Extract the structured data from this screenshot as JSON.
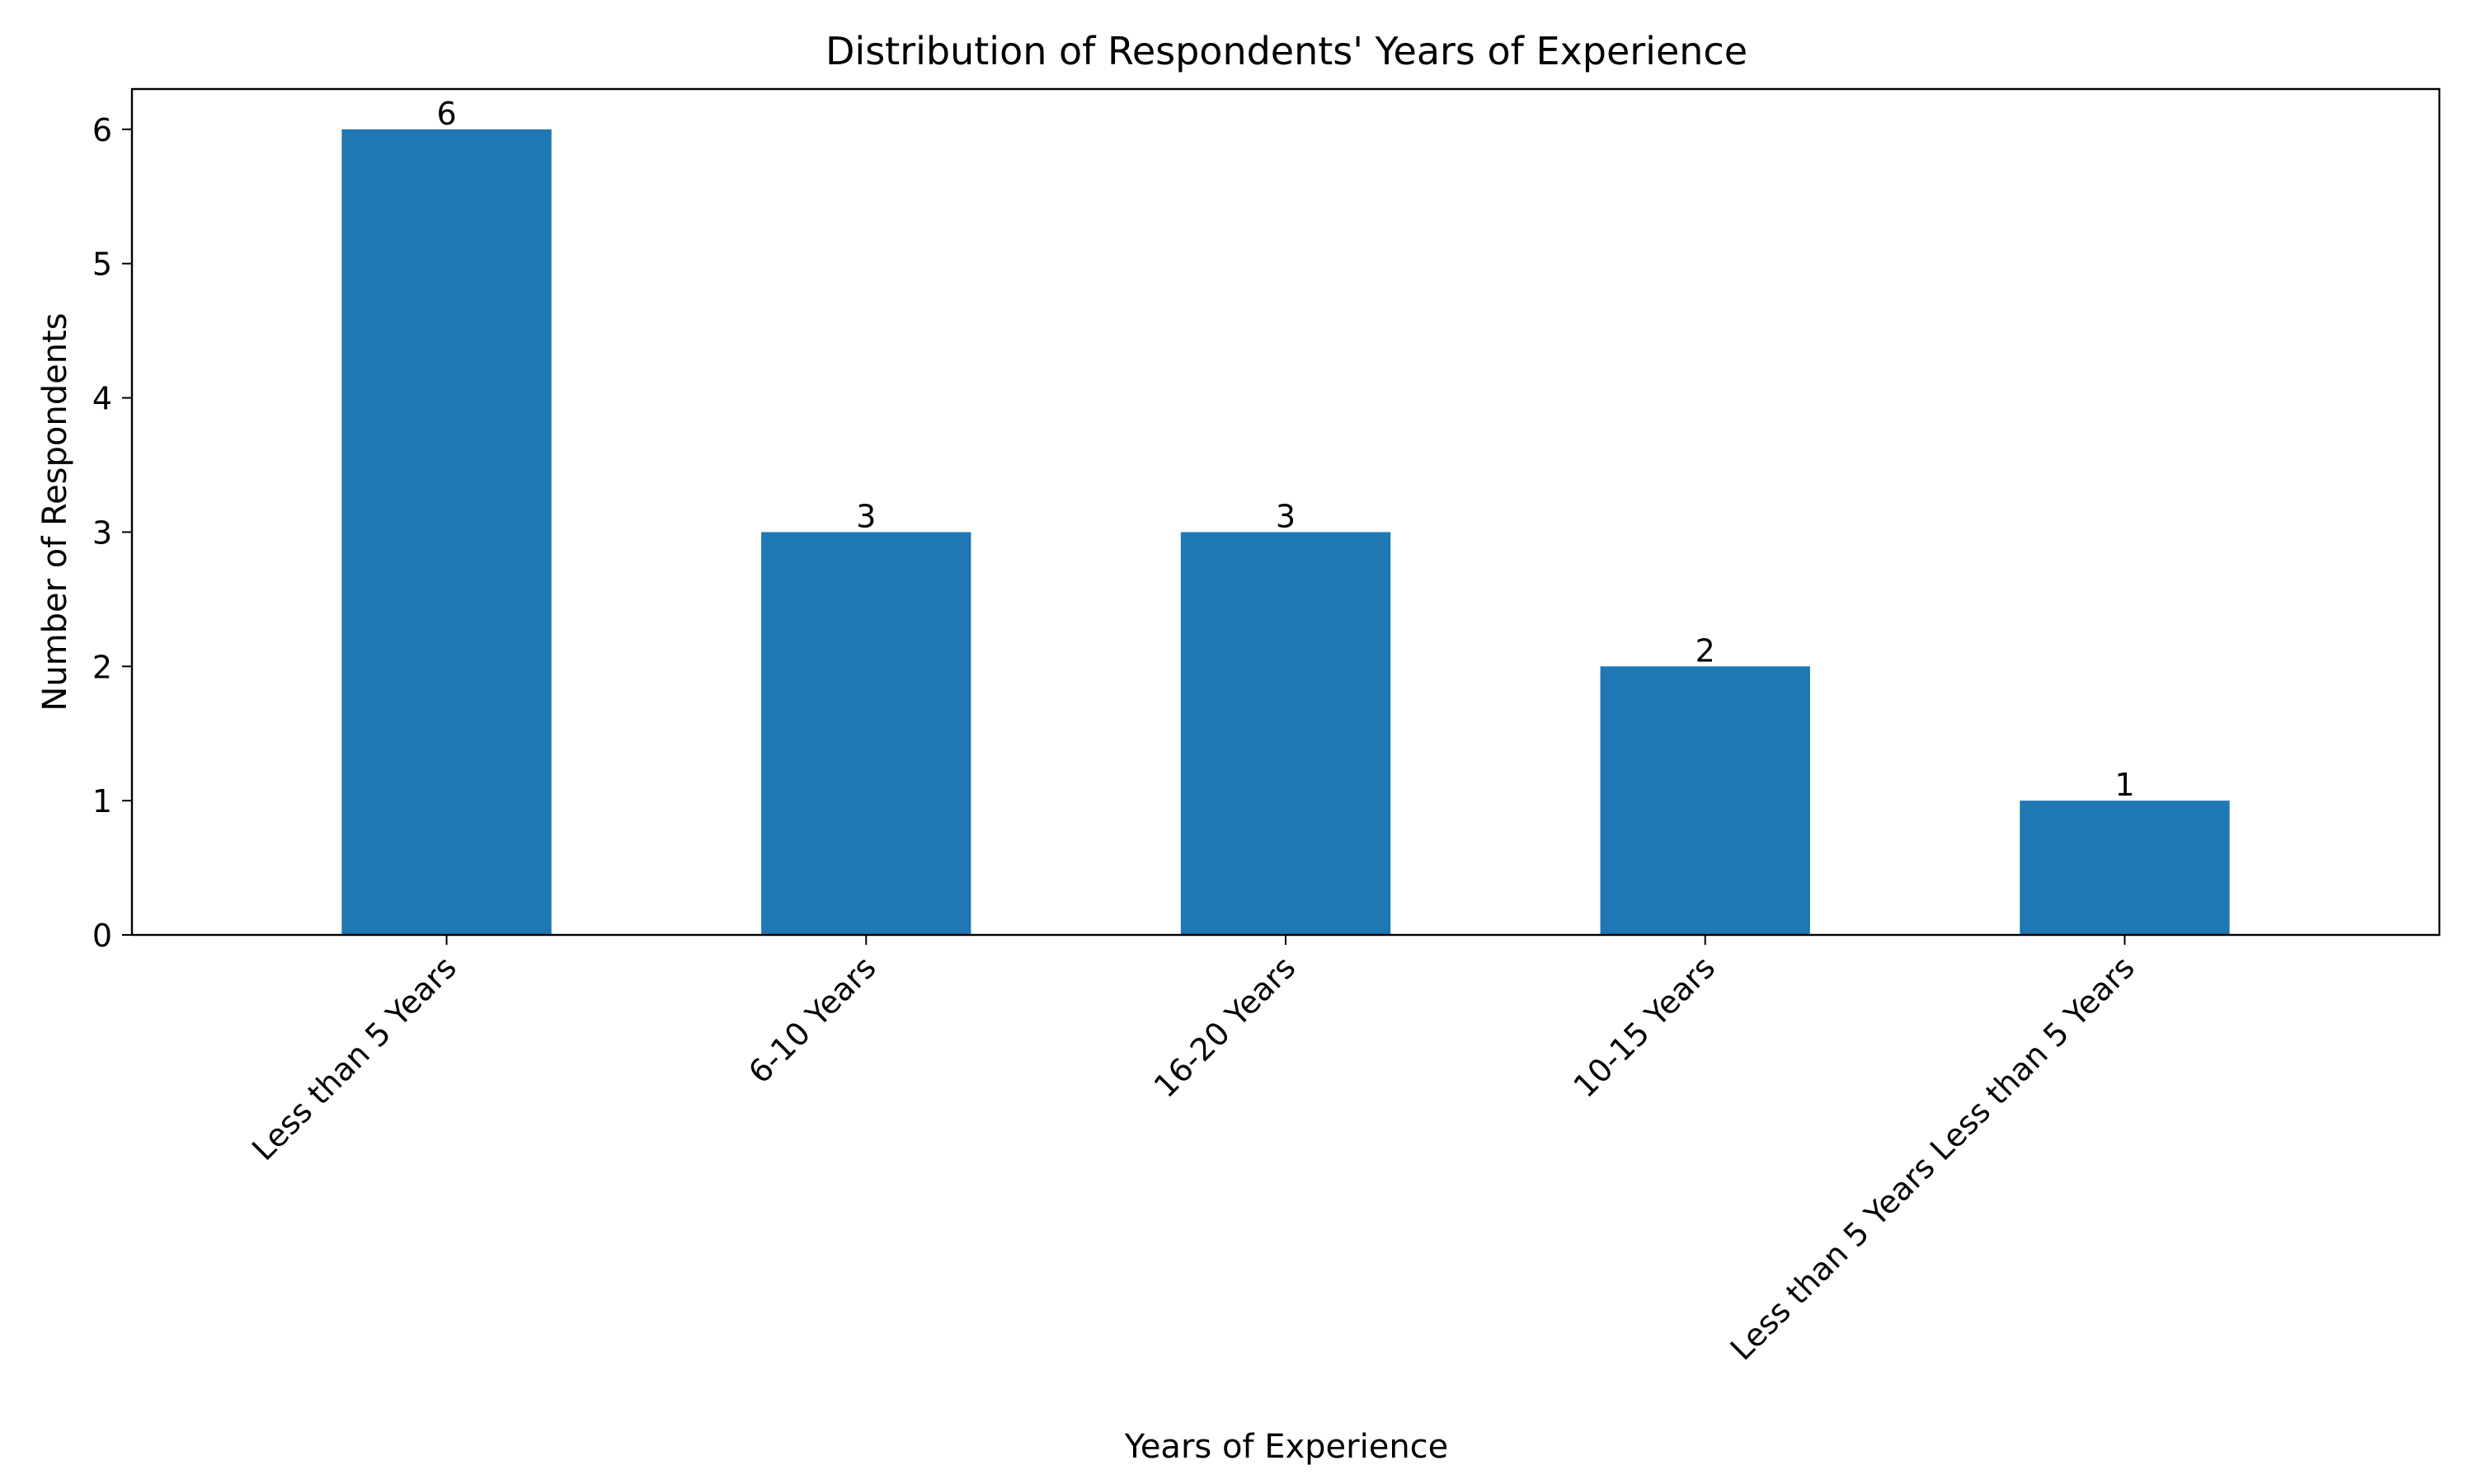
{
  "chart_data": {
    "type": "bar",
    "title": "Distribution of Respondents' Years of Experience",
    "xlabel": "Years of Experience",
    "ylabel": "Number of Respondents",
    "categories": [
      "Less than 5 Years",
      "6-10 Years",
      "16-20 Years",
      "10-15 Years",
      "Less than 5 Years Less than 5 Years"
    ],
    "values": [
      6,
      3,
      3,
      2,
      1
    ],
    "data_labels": [
      "6",
      "3",
      "3",
      "2",
      "1"
    ],
    "ylim": [
      0,
      6.3
    ],
    "yticks": [
      0,
      1,
      2,
      3,
      4,
      5,
      6
    ],
    "grid": false,
    "legend": "none",
    "bar_color": "#1f77b4"
  }
}
